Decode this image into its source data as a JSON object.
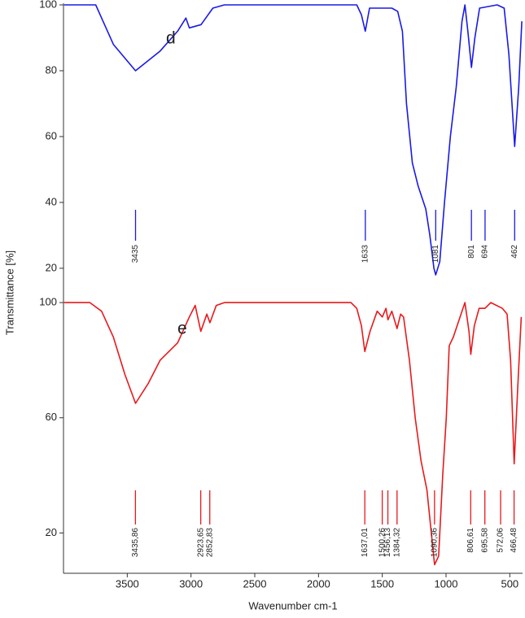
{
  "chart_data": [
    {
      "type": "line",
      "annotation": "d",
      "ylabel": "Transmittance [%]",
      "color": "#1a1ae6",
      "xlim": [
        4000,
        400
      ],
      "ylim": [
        18,
        100
      ],
      "yticks": [
        20,
        40,
        60,
        80,
        100
      ],
      "x": [
        3995,
        3747,
        3609,
        3435,
        3242,
        3105,
        3040,
        3013,
        2921,
        2829,
        2738,
        1700,
        1664,
        1633,
        1600,
        1517,
        1425,
        1379,
        1342,
        1310,
        1264,
        1219,
        1159,
        1127,
        1095,
        1081,
        1049,
        1012,
        966,
        920,
        875,
        852,
        829,
        801,
        774,
        737,
        599,
        544,
        507,
        462,
        430,
        406
      ],
      "values": [
        100,
        100,
        88,
        80,
        86,
        92,
        96,
        93,
        94,
        99,
        100,
        100,
        97,
        92,
        99,
        99,
        99,
        98,
        92,
        70,
        52,
        45,
        38,
        30,
        20,
        18,
        22,
        40,
        60,
        75,
        95,
        100,
        92,
        81,
        90,
        99,
        100,
        99,
        85,
        57,
        75,
        95
      ],
      "peaks": [
        {
          "x": 3435,
          "label": "3435"
        },
        {
          "x": 1633,
          "label": "1633"
        },
        {
          "x": 1081,
          "label": "1081"
        },
        {
          "x": 801,
          "label": "801"
        },
        {
          "x": 694,
          "label": "694"
        },
        {
          "x": 462,
          "label": "462"
        }
      ]
    },
    {
      "type": "line",
      "annotation": "e",
      "xlabel": "Wavenumber cm-1",
      "color": "#e8191c",
      "xlim": [
        4000,
        400
      ],
      "xticks": [
        3500,
        3000,
        2500,
        2000,
        1500,
        1000,
        500
      ],
      "ylim": [
        6,
        102
      ],
      "yticks": [
        20,
        60,
        100
      ],
      "x": [
        3995,
        3793,
        3701,
        3609,
        3518,
        3435,
        3334,
        3242,
        3105,
        3013,
        2967,
        2923,
        2876,
        2852,
        2802,
        2738,
        1746,
        1700,
        1664,
        1637,
        1596,
        1540,
        1500,
        1471,
        1456,
        1425,
        1384,
        1356,
        1333,
        1287,
        1242,
        1196,
        1150,
        1104,
        1090,
        1058,
        1026,
        998,
        975,
        943,
        875,
        852,
        820,
        806,
        778,
        741,
        695,
        649,
        558,
        521,
        494,
        466,
        438,
        410
      ],
      "values": [
        100,
        100,
        97,
        88,
        75,
        65,
        72,
        80,
        86,
        95,
        99,
        90,
        96,
        93,
        99,
        100,
        100,
        98,
        92,
        83,
        90,
        97,
        95,
        98,
        94,
        97,
        91,
        96,
        95,
        80,
        60,
        45,
        35,
        15,
        9,
        12,
        40,
        60,
        85,
        88,
        97,
        100,
        90,
        82,
        92,
        98,
        98,
        100,
        98,
        96,
        80,
        44,
        70,
        95
      ],
      "peaks": [
        {
          "x": 3435.86,
          "label": "3435,86"
        },
        {
          "x": 2923.65,
          "label": "2923,65"
        },
        {
          "x": 2852.83,
          "label": "2852,83"
        },
        {
          "x": 1637.01,
          "label": "1637,01"
        },
        {
          "x": 1500.26,
          "label": "1500,26"
        },
        {
          "x": 1456.13,
          "label": "1456,13"
        },
        {
          "x": 1384.32,
          "label": "1384,32"
        },
        {
          "x": 1090.36,
          "label": "1090,36"
        },
        {
          "x": 806.61,
          "label": "806,61"
        },
        {
          "x": 695.58,
          "label": "695,58"
        },
        {
          "x": 572.06,
          "label": "572,06"
        },
        {
          "x": 466.48,
          "label": "466,48"
        }
      ]
    }
  ]
}
